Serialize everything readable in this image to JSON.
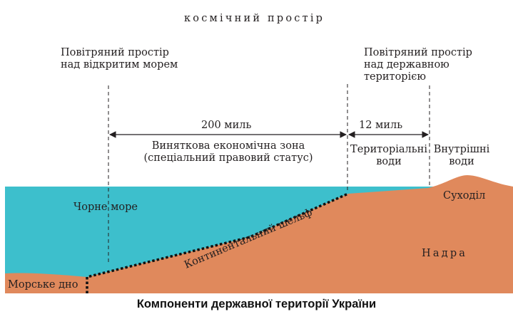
{
  "labels": {
    "cosmic_space": "космічний простір",
    "airspace_open_sea_line1": "Повітряний простір",
    "airspace_open_sea_line2": "над відкритим морем",
    "airspace_state_line1": "Повітряний простір",
    "airspace_state_line2": "над державною",
    "airspace_state_line3": "територією",
    "distance_200": "200 миль",
    "distance_12": "12 миль",
    "eez_line1": "Виняткова економічна зона",
    "eez_line2": "(спеціальний правовий статус)",
    "territorial_line1": "Територіальні",
    "territorial_line2": "води",
    "internal_line1": "Внутрішні",
    "internal_line2": "води",
    "land": "Суходіл",
    "black_sea": "Чорне море",
    "continental_shelf": "Континентальний шельф",
    "subsoil": "Надра",
    "seabed": "Морське дно"
  },
  "caption": "Компоненти державної території України",
  "colors": {
    "sky": "#ffffff",
    "sea": "#3dbfcc",
    "land": "#e0895c",
    "text": "#231f20"
  }
}
